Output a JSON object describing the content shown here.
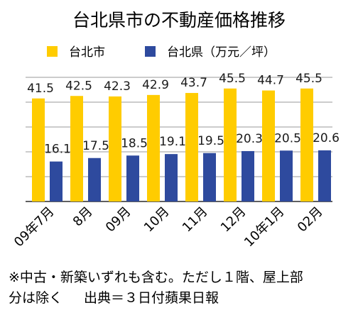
{
  "chart_data": {
    "type": "bar",
    "title": "台北県市の不動産価格推移",
    "categories": [
      "09年7月",
      "8月",
      "09月",
      "10月",
      "11月",
      "12月",
      "10年1月",
      "02月"
    ],
    "series": [
      {
        "name": "台北市",
        "color": "#FFCC00",
        "values": [
          41.5,
          42.5,
          42.3,
          42.9,
          43.7,
          45.5,
          44.7,
          45.5
        ]
      },
      {
        "name": "台北県（万元／坪）",
        "color": "#2E4A9E",
        "values": [
          16.1,
          17.5,
          18.5,
          19.1,
          19.5,
          20.3,
          20.5,
          20.6
        ]
      }
    ],
    "ylim": [
      0,
      50
    ],
    "grid": true,
    "legend_position": "top"
  },
  "notes": {
    "line1": "※中古・新築いずれも含む。ただし１階、屋上部",
    "line2_a": "分は除く",
    "line2_b": "出典＝３日付蘋果日報"
  }
}
